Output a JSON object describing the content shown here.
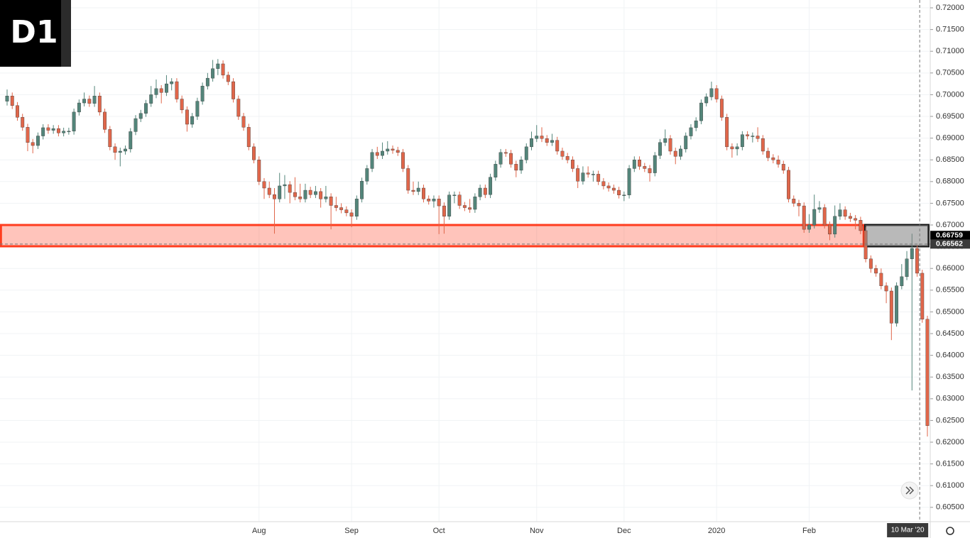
{
  "chart_data": {
    "type": "candlestick",
    "timeframe_label": "D1",
    "xlim": [
      -1.38,
      179.55
    ],
    "ylim": [
      0.6017,
      0.7218
    ],
    "grid": true,
    "up_color": "#53857a",
    "down_color": "#e0664a",
    "xticks": [
      {
        "value": 49,
        "label": "Aug"
      },
      {
        "value": 67,
        "label": "Sep"
      },
      {
        "value": 84,
        "label": "Oct"
      },
      {
        "value": 103,
        "label": "Nov"
      },
      {
        "value": 120,
        "label": "Dec"
      },
      {
        "value": 138,
        "label": "2020"
      },
      {
        "value": 156,
        "label": "Feb"
      }
    ],
    "yticks": [
      {
        "value": 0.605,
        "label": "0.60500"
      },
      {
        "value": 0.61,
        "label": "0.61000"
      },
      {
        "value": 0.615,
        "label": "0.61500"
      },
      {
        "value": 0.62,
        "label": "0.62000"
      },
      {
        "value": 0.625,
        "label": "0.62500"
      },
      {
        "value": 0.63,
        "label": "0.63000"
      },
      {
        "value": 0.635,
        "label": "0.63500"
      },
      {
        "value": 0.64,
        "label": "0.64000"
      },
      {
        "value": 0.645,
        "label": "0.64500"
      },
      {
        "value": 0.65,
        "label": "0.65000"
      },
      {
        "value": 0.655,
        "label": "0.65500"
      },
      {
        "value": 0.66,
        "label": "0.66000"
      },
      {
        "value": 0.665,
        "label": "0.66500"
      },
      {
        "value": 0.67,
        "label": "0.67000"
      },
      {
        "value": 0.675,
        "label": "0.67500"
      },
      {
        "value": 0.68,
        "label": "0.68000"
      },
      {
        "value": 0.685,
        "label": "0.68500"
      },
      {
        "value": 0.69,
        "label": "0.69000"
      },
      {
        "value": 0.695,
        "label": "0.69500"
      },
      {
        "value": 0.7,
        "label": "0.70000"
      },
      {
        "value": 0.705,
        "label": "0.70500"
      },
      {
        "value": 0.71,
        "label": "0.71000"
      },
      {
        "value": 0.715,
        "label": "0.71500"
      },
      {
        "value": 0.72,
        "label": "0.72000"
      }
    ],
    "zones": [
      {
        "from": -1.2,
        "to": 166.6,
        "top": 0.67,
        "bottom": 0.6651,
        "color": "#ff3d1f"
      },
      {
        "from": 166.9,
        "to": 179.2,
        "top": 0.67,
        "bottom": 0.6651,
        "color": "#111111"
      }
    ],
    "price_labels": [
      {
        "value": 0.66759,
        "label": "0.66759",
        "color": "#000000"
      },
      {
        "value": 0.66562,
        "label": "0.66562",
        "color": "#3a3a3a"
      }
    ],
    "crosshair": {
      "x": 177.5,
      "y": 0.66562,
      "label": "10 Mar '20"
    },
    "open": [
      0.6985,
      0.6997,
      0.6975,
      0.6948,
      0.6925,
      0.689,
      0.6883,
      0.6905,
      0.6924,
      0.6918,
      0.6922,
      0.6912,
      0.6916,
      0.6916,
      0.696,
      0.6981,
      0.699,
      0.698,
      0.6997,
      0.696,
      0.692,
      0.688,
      0.6867,
      0.687,
      0.6875,
      0.6915,
      0.6945,
      0.6957,
      0.698,
      0.7,
      0.7014,
      0.7005,
      0.7025,
      0.703,
      0.699,
      0.6965,
      0.6932,
      0.695,
      0.6985,
      0.702,
      0.7038,
      0.706,
      0.7071,
      0.7045,
      0.703,
      0.699,
      0.695,
      0.6925,
      0.688,
      0.685,
      0.68,
      0.6785,
      0.677,
      0.676,
      0.679,
      0.6793,
      0.6775,
      0.6765,
      0.676,
      0.678,
      0.677,
      0.6777,
      0.676,
      0.6765,
      0.6745,
      0.674,
      0.6735,
      0.6728,
      0.672,
      0.676,
      0.6801,
      0.683,
      0.6867,
      0.686,
      0.687,
      0.6875,
      0.6872,
      0.6867,
      0.683,
      0.678,
      0.6777,
      0.6785,
      0.676,
      0.6755,
      0.676,
      0.6744,
      0.672,
      0.6769,
      0.6769,
      0.6745,
      0.674,
      0.6736,
      0.6765,
      0.6785,
      0.677,
      0.681,
      0.684,
      0.6867,
      0.6865,
      0.684,
      0.6826,
      0.685,
      0.688,
      0.6899,
      0.6905,
      0.6899,
      0.689,
      0.6895,
      0.687,
      0.6858,
      0.685,
      0.683,
      0.6801,
      0.682,
      0.6817,
      0.6817,
      0.68,
      0.679,
      0.6785,
      0.678,
      0.6769,
      0.6769,
      0.683,
      0.685,
      0.6835,
      0.683,
      0.682,
      0.686,
      0.689,
      0.6899,
      0.687,
      0.6858,
      0.6875,
      0.6905,
      0.6924,
      0.694,
      0.6981,
      0.6995,
      0.7014,
      0.699,
      0.6948,
      0.688,
      0.6875,
      0.688,
      0.6908,
      0.6905,
      0.6905,
      0.6899,
      0.687,
      0.6855,
      0.685,
      0.684,
      0.6826,
      0.676,
      0.675,
      0.6744,
      0.669,
      0.67,
      0.6736,
      0.674,
      0.67,
      0.6679,
      0.672,
      0.6735,
      0.672,
      0.6715,
      0.6711,
      0.6687,
      0.6622,
      0.66,
      0.6589,
      0.656,
      0.6548,
      0.6474,
      0.656,
      0.6581,
      0.6622,
      0.6646,
      0.6589,
      0.6483
    ],
    "high": [
      0.7012,
      0.7005,
      0.6983,
      0.6956,
      0.6933,
      0.6898,
      0.6913,
      0.6932,
      0.6932,
      0.693,
      0.693,
      0.6924,
      0.6924,
      0.6968,
      0.6989,
      0.7005,
      0.6998,
      0.702,
      0.7005,
      0.6968,
      0.6928,
      0.6888,
      0.6878,
      0.6883,
      0.6923,
      0.6953,
      0.6965,
      0.6988,
      0.702,
      0.7035,
      0.7022,
      0.7045,
      0.7038,
      0.7038,
      0.6998,
      0.6973,
      0.6958,
      0.6993,
      0.7028,
      0.705,
      0.708,
      0.7082,
      0.7079,
      0.7053,
      0.7038,
      0.6998,
      0.6958,
      0.6933,
      0.6888,
      0.6858,
      0.6808,
      0.68,
      0.6785,
      0.682,
      0.6815,
      0.6801,
      0.681,
      0.6795,
      0.6795,
      0.6788,
      0.679,
      0.6785,
      0.679,
      0.6773,
      0.6765,
      0.675,
      0.6743,
      0.6736,
      0.6768,
      0.6809,
      0.6838,
      0.6875,
      0.688,
      0.689,
      0.6893,
      0.6883,
      0.688,
      0.6875,
      0.6838,
      0.68,
      0.68,
      0.6793,
      0.6768,
      0.6768,
      0.6768,
      0.6752,
      0.6777,
      0.6777,
      0.6777,
      0.6753,
      0.676,
      0.6773,
      0.6793,
      0.6793,
      0.6818,
      0.6848,
      0.6875,
      0.6875,
      0.6873,
      0.6848,
      0.6858,
      0.6888,
      0.6915,
      0.693,
      0.6925,
      0.6907,
      0.691,
      0.6903,
      0.6878,
      0.6866,
      0.6858,
      0.6838,
      0.6835,
      0.6835,
      0.6825,
      0.6825,
      0.6808,
      0.6798,
      0.6793,
      0.6788,
      0.6777,
      0.6838,
      0.6858,
      0.6858,
      0.6843,
      0.6838,
      0.6868,
      0.6898,
      0.692,
      0.6907,
      0.6878,
      0.6883,
      0.6913,
      0.6932,
      0.6948,
      0.6989,
      0.7003,
      0.703,
      0.7022,
      0.6998,
      0.6956,
      0.6888,
      0.6888,
      0.6916,
      0.6916,
      0.6913,
      0.6925,
      0.6907,
      0.6878,
      0.6863,
      0.686,
      0.6848,
      0.6834,
      0.6768,
      0.6758,
      0.6752,
      0.6725,
      0.677,
      0.6755,
      0.6748,
      0.6708,
      0.6745,
      0.675,
      0.6743,
      0.6728,
      0.6723,
      0.6719,
      0.6695,
      0.663,
      0.6608,
      0.66,
      0.6568,
      0.6556,
      0.6568,
      0.661,
      0.664,
      0.668,
      0.6654,
      0.6597,
      0.6491
    ],
    "low": [
      0.6975,
      0.6967,
      0.694,
      0.6917,
      0.687,
      0.6865,
      0.6875,
      0.6897,
      0.691,
      0.691,
      0.6904,
      0.6904,
      0.6908,
      0.6908,
      0.6952,
      0.6973,
      0.6972,
      0.6972,
      0.6952,
      0.6912,
      0.6872,
      0.685,
      0.6835,
      0.6862,
      0.6867,
      0.6907,
      0.6937,
      0.6949,
      0.6972,
      0.6992,
      0.698,
      0.6997,
      0.701,
      0.6982,
      0.6957,
      0.6915,
      0.6924,
      0.6942,
      0.6977,
      0.7012,
      0.703,
      0.7045,
      0.7037,
      0.7022,
      0.6982,
      0.6942,
      0.6917,
      0.6872,
      0.6842,
      0.6792,
      0.676,
      0.6762,
      0.668,
      0.6752,
      0.676,
      0.675,
      0.6757,
      0.6752,
      0.6752,
      0.6762,
      0.6762,
      0.674,
      0.6752,
      0.669,
      0.6732,
      0.6727,
      0.672,
      0.6695,
      0.6712,
      0.6752,
      0.6793,
      0.6822,
      0.6852,
      0.6852,
      0.6862,
      0.6864,
      0.6859,
      0.6822,
      0.6772,
      0.6769,
      0.6769,
      0.6752,
      0.6747,
      0.674,
      0.6679,
      0.668,
      0.6712,
      0.675,
      0.6737,
      0.6732,
      0.6728,
      0.6728,
      0.6757,
      0.6762,
      0.6762,
      0.6802,
      0.6832,
      0.6857,
      0.6832,
      0.681,
      0.6818,
      0.6842,
      0.6872,
      0.6891,
      0.6891,
      0.6882,
      0.6882,
      0.6862,
      0.685,
      0.6842,
      0.6822,
      0.6785,
      0.6793,
      0.6809,
      0.68,
      0.6792,
      0.6782,
      0.6777,
      0.6772,
      0.6761,
      0.6755,
      0.6761,
      0.6822,
      0.6827,
      0.6822,
      0.68,
      0.6812,
      0.6852,
      0.6882,
      0.6862,
      0.684,
      0.685,
      0.6867,
      0.6897,
      0.6916,
      0.6932,
      0.6973,
      0.6987,
      0.6982,
      0.694,
      0.6872,
      0.6855,
      0.686,
      0.6872,
      0.6897,
      0.689,
      0.6891,
      0.6862,
      0.6847,
      0.6842,
      0.6832,
      0.6818,
      0.6752,
      0.6742,
      0.672,
      0.6682,
      0.6682,
      0.6692,
      0.6728,
      0.6692,
      0.6665,
      0.6671,
      0.6712,
      0.6712,
      0.6707,
      0.669,
      0.6679,
      0.6614,
      0.659,
      0.6581,
      0.6552,
      0.652,
      0.6435,
      0.6466,
      0.6552,
      0.6573,
      0.6319,
      0.6581,
      0.6475,
      0.6213
    ],
    "close": [
      0.6997,
      0.6975,
      0.6948,
      0.6925,
      0.689,
      0.6883,
      0.6905,
      0.6924,
      0.6918,
      0.6922,
      0.6912,
      0.6916,
      0.6916,
      0.696,
      0.6981,
      0.699,
      0.698,
      0.6997,
      0.696,
      0.692,
      0.688,
      0.6867,
      0.687,
      0.6875,
      0.6915,
      0.6945,
      0.6957,
      0.698,
      0.7,
      0.7014,
      0.7005,
      0.7025,
      0.703,
      0.699,
      0.6965,
      0.6932,
      0.695,
      0.6985,
      0.702,
      0.7038,
      0.706,
      0.7071,
      0.7045,
      0.703,
      0.699,
      0.695,
      0.6925,
      0.688,
      0.685,
      0.68,
      0.6785,
      0.677,
      0.676,
      0.679,
      0.6793,
      0.6775,
      0.6765,
      0.676,
      0.678,
      0.677,
      0.6777,
      0.676,
      0.6765,
      0.6745,
      0.674,
      0.6735,
      0.6728,
      0.672,
      0.676,
      0.6801,
      0.683,
      0.6867,
      0.686,
      0.687,
      0.6875,
      0.6872,
      0.6867,
      0.683,
      0.678,
      0.6777,
      0.6785,
      0.676,
      0.6755,
      0.676,
      0.6744,
      0.672,
      0.6769,
      0.6769,
      0.6745,
      0.674,
      0.6736,
      0.6765,
      0.6785,
      0.677,
      0.681,
      0.684,
      0.6867,
      0.6865,
      0.684,
      0.6826,
      0.685,
      0.688,
      0.6899,
      0.6905,
      0.6899,
      0.689,
      0.6895,
      0.687,
      0.6858,
      0.685,
      0.683,
      0.6801,
      0.682,
      0.6817,
      0.6817,
      0.68,
      0.679,
      0.6785,
      0.678,
      0.6769,
      0.6769,
      0.683,
      0.685,
      0.6835,
      0.683,
      0.682,
      0.686,
      0.689,
      0.6899,
      0.687,
      0.6858,
      0.6875,
      0.6905,
      0.6924,
      0.694,
      0.6981,
      0.6995,
      0.7014,
      0.699,
      0.6948,
      0.688,
      0.6875,
      0.688,
      0.6908,
      0.6905,
      0.6905,
      0.6899,
      0.687,
      0.6855,
      0.685,
      0.684,
      0.6826,
      0.676,
      0.675,
      0.6744,
      0.669,
      0.67,
      0.6736,
      0.674,
      0.67,
      0.6679,
      0.672,
      0.6735,
      0.672,
      0.6715,
      0.6711,
      0.6687,
      0.6622,
      0.66,
      0.6589,
      0.656,
      0.6548,
      0.6474,
      0.656,
      0.6581,
      0.6622,
      0.6646,
      0.6589,
      0.6483,
      0.6238
    ]
  }
}
